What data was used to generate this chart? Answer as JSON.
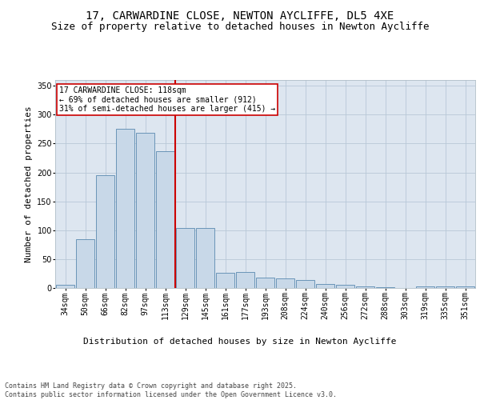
{
  "title1": "17, CARWARDINE CLOSE, NEWTON AYCLIFFE, DL5 4XE",
  "title2": "Size of property relative to detached houses in Newton Aycliffe",
  "xlabel": "Distribution of detached houses by size in Newton Aycliffe",
  "ylabel": "Number of detached properties",
  "categories": [
    "34sqm",
    "50sqm",
    "66sqm",
    "82sqm",
    "97sqm",
    "113sqm",
    "129sqm",
    "145sqm",
    "161sqm",
    "177sqm",
    "193sqm",
    "208sqm",
    "224sqm",
    "240sqm",
    "256sqm",
    "272sqm",
    "288sqm",
    "303sqm",
    "319sqm",
    "335sqm",
    "351sqm"
  ],
  "values": [
    6,
    85,
    195,
    276,
    268,
    237,
    104,
    104,
    27,
    28,
    18,
    17,
    14,
    7,
    6,
    3,
    1,
    0,
    3,
    3,
    3
  ],
  "bar_color": "#c8d8e8",
  "bar_edge_color": "#5a8ab0",
  "vline_x": 5.5,
  "vline_color": "#cc0000",
  "annotation_text": "17 CARWARDINE CLOSE: 118sqm\n← 69% of detached houses are smaller (912)\n31% of semi-detached houses are larger (415) →",
  "annotation_box_color": "#ffffff",
  "annotation_box_edge": "#cc0000",
  "ylim": [
    0,
    360
  ],
  "yticks": [
    0,
    50,
    100,
    150,
    200,
    250,
    300,
    350
  ],
  "background_color": "#dde6f0",
  "footer": "Contains HM Land Registry data © Crown copyright and database right 2025.\nContains public sector information licensed under the Open Government Licence v3.0.",
  "title_fontsize": 10,
  "subtitle_fontsize": 9,
  "ylabel_fontsize": 8,
  "xlabel_fontsize": 8,
  "tick_fontsize": 7,
  "annotation_fontsize": 7,
  "footer_fontsize": 6
}
